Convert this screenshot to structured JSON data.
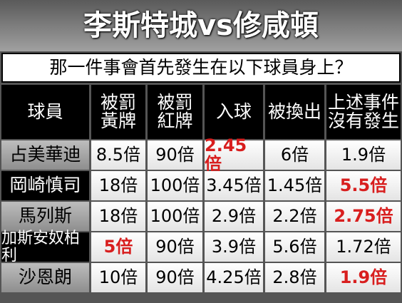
{
  "title": "李斯特城vs修咸頓",
  "subtitle": "那一件事會首先發生在以下球員身上？",
  "table": {
    "headers": [
      [
        "球員"
      ],
      [
        "被罰",
        "黃牌"
      ],
      [
        "被罰",
        "紅牌"
      ],
      [
        "入球"
      ],
      [
        "被換出"
      ],
      [
        "上述事件",
        "沒有發生"
      ]
    ],
    "highlight_color": "#d81e1e",
    "rows": [
      {
        "player": "占美華迪",
        "cells": [
          "8.5倍",
          "90倍",
          "2.45倍",
          "6倍",
          "1.9倍"
        ],
        "highlight": 2
      },
      {
        "player": "岡崎慎司",
        "cells": [
          "18倍",
          "100倍",
          "3.45倍",
          "1.45倍",
          "5.5倍"
        ],
        "highlight": 4
      },
      {
        "player": "馬列斯",
        "cells": [
          "18倍",
          "100倍",
          "2.9倍",
          "2.2倍",
          "2.75倍"
        ],
        "highlight": 4
      },
      {
        "player": "加斯安奴柏利",
        "cells": [
          "5倍",
          "90倍",
          "3.9倍",
          "5.6倍",
          "1.72倍"
        ],
        "highlight": 0
      },
      {
        "player": "沙恩朗",
        "cells": [
          "10倍",
          "90倍",
          "4.25倍",
          "2.8倍",
          "1.9倍"
        ],
        "highlight": 4
      }
    ]
  }
}
